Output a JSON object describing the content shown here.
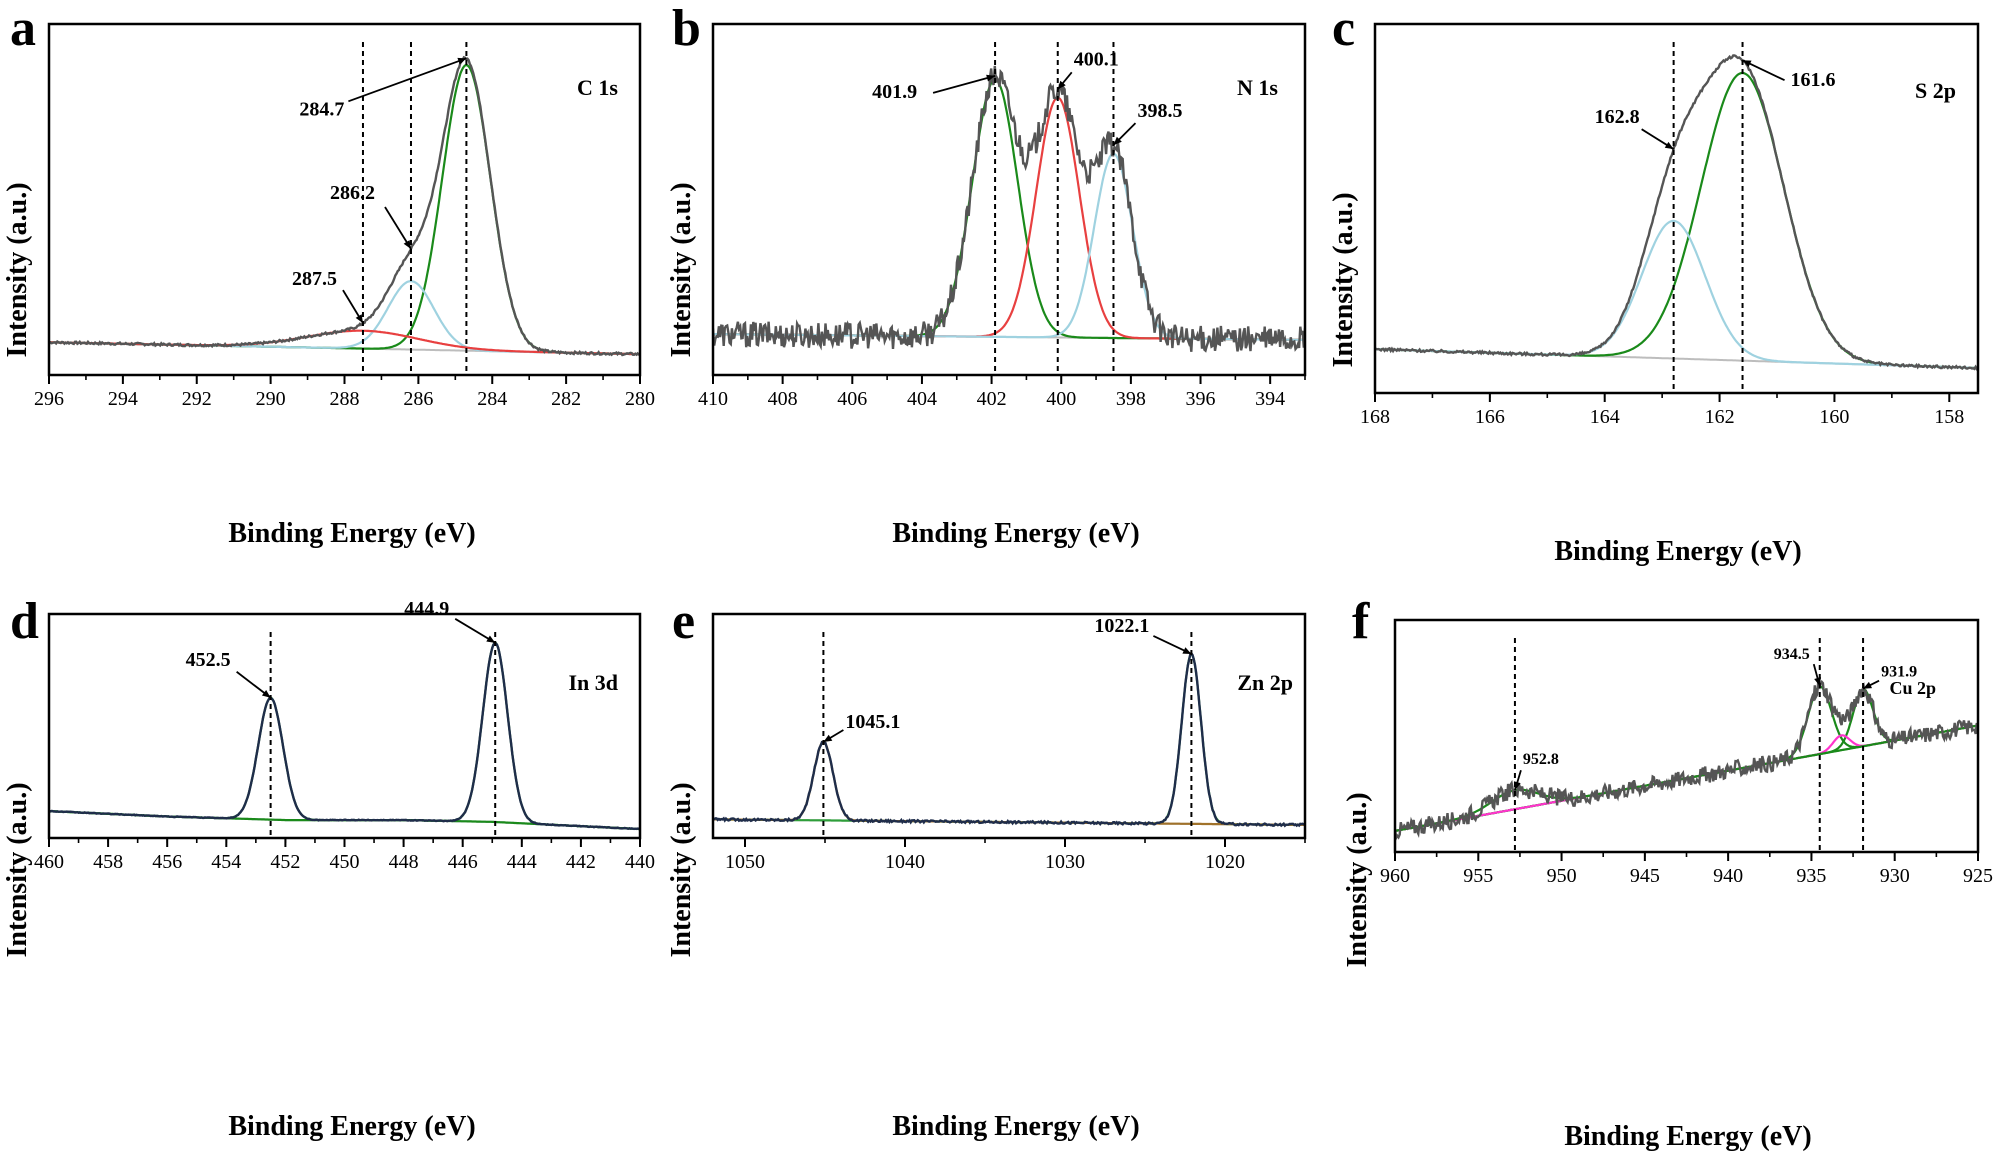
{
  "figure": {
    "panels": [
      {
        "letter": "a",
        "element": "C 1s",
        "xlabel": "Binding Energy (eV)",
        "ylabel": "Intensity (a.u.)"
      },
      {
        "letter": "b",
        "element": "N 1s",
        "xlabel": "Binding Energy (eV)",
        "ylabel": "Intensity (a.u.)"
      },
      {
        "letter": "c",
        "element": "S 2p",
        "xlabel": "Binding Energy (eV)",
        "ylabel": "Intensity (a.u.)"
      },
      {
        "letter": "d",
        "element": "In 3d",
        "xlabel": "Binding Energy (eV)",
        "ylabel": "Intensity (a.u.)"
      },
      {
        "letter": "e",
        "element": "Zn 2p",
        "xlabel": "Binding Energy (eV)",
        "ylabel": "Intensity (a.u.)"
      },
      {
        "letter": "f",
        "element": "Cu 2p",
        "xlabel": "Binding Energy (eV)",
        "ylabel": "Intensity (a.u.)"
      }
    ]
  },
  "chart_data": [
    {
      "panel": "a",
      "type": "line",
      "title": "C 1s",
      "xlabel": "Binding Energy (eV)",
      "ylabel": "Intensity (a.u.)",
      "xlim": [
        296,
        280
      ],
      "xticks": [
        296,
        294,
        292,
        290,
        288,
        286,
        284,
        282,
        280
      ],
      "ylim": [
        -0.1,
        1.08
      ],
      "y_ticks_shown": false,
      "background": {
        "type": "linear",
        "y_start": 0.01,
        "y_end": -0.03,
        "color": "#bdbdbd"
      },
      "components": [
        {
          "center": 284.7,
          "height": 0.96,
          "sigma": 0.65,
          "color": "#1a8a1a"
        },
        {
          "center": 286.2,
          "height": 0.23,
          "sigma": 0.62,
          "color": "#9fd2e0"
        },
        {
          "center": 287.5,
          "height": 0.06,
          "sigma": 1.5,
          "color": "#e84040"
        }
      ],
      "envelope_color": "#555555",
      "noise": 0.004,
      "peaks": [
        {
          "label": "284.7",
          "x": 284.7
        },
        {
          "label": "286.2",
          "x": 286.2
        },
        {
          "label": "287.5",
          "x": 287.5
        }
      ]
    },
    {
      "panel": "b",
      "type": "line",
      "title": "N 1s",
      "xlabel": "Binding Energy (eV)",
      "ylabel": "Intensity (a.u.)",
      "xlim": [
        410,
        393
      ],
      "xticks": [
        410,
        408,
        406,
        404,
        402,
        400,
        398,
        396,
        394
      ],
      "ylim": [
        -0.12,
        1.08
      ],
      "y_ticks_shown": false,
      "background": {
        "type": "linear",
        "y_start": 0.02,
        "y_end": 0.0,
        "color": "#bdbdbd"
      },
      "components": [
        {
          "center": 401.9,
          "height": 0.88,
          "sigma": 0.65,
          "color": "#1a8a1a"
        },
        {
          "center": 400.1,
          "height": 0.82,
          "sigma": 0.62,
          "color": "#e84040"
        },
        {
          "center": 398.5,
          "height": 0.63,
          "sigma": 0.55,
          "color": "#9fd2e0"
        }
      ],
      "envelope_color": "#555555",
      "noise": 0.045,
      "peaks": [
        {
          "label": "401.9",
          "x": 401.9
        },
        {
          "label": "400.1",
          "x": 400.1
        },
        {
          "label": "398.5",
          "x": 398.5
        }
      ]
    },
    {
      "panel": "c",
      "type": "line",
      "title": "S 2p",
      "xlabel": "Binding Energy (eV)",
      "ylabel": "Intensity (a.u.)",
      "xlim": [
        168,
        157.5
      ],
      "xticks": [
        168,
        166,
        164,
        162,
        160,
        158
      ],
      "ylim": [
        -0.1,
        1.08
      ],
      "y_ticks_shown": false,
      "background": {
        "type": "linear",
        "y_start": 0.04,
        "y_end": -0.02,
        "color": "#bdbdbd"
      },
      "components": [
        {
          "center": 161.6,
          "height": 0.92,
          "sigma": 0.72,
          "color": "#1a8a1a"
        },
        {
          "center": 162.8,
          "height": 0.44,
          "sigma": 0.55,
          "color": "#9fd2e0"
        }
      ],
      "envelope_color": "#555555",
      "noise": 0.004,
      "peaks": [
        {
          "label": "161.6",
          "x": 161.6
        },
        {
          "label": "162.8",
          "x": 162.8
        }
      ]
    },
    {
      "panel": "d",
      "type": "line",
      "title": "In 3d",
      "xlabel": "Binding Energy (eV)",
      "ylabel": "Intensity (a.u.)",
      "xlim": [
        460,
        440
      ],
      "xticks": [
        460,
        458,
        456,
        454,
        452,
        450,
        448,
        446,
        444,
        442,
        440
      ],
      "ylim": [
        -0.15,
        1.1
      ],
      "y_ticks_shown": false,
      "background": {
        "type": "polyline",
        "x": [
          460,
          456,
          452,
          448,
          445,
          440
        ],
        "y": [
          0.0,
          -0.03,
          -0.05,
          -0.05,
          -0.06,
          -0.1
        ],
        "color": "#8aa0b4"
      },
      "components": [
        {
          "center": 444.9,
          "height": 1.0,
          "sigma": 0.42,
          "color": "#1a8a1a"
        },
        {
          "center": 452.5,
          "height": 0.68,
          "sigma": 0.42,
          "color": "#1a8a1a"
        }
      ],
      "envelope_color": "#1f2d4a",
      "noise": 0.002,
      "peaks": [
        {
          "label": "444.9",
          "x": 444.9
        },
        {
          "label": "452.5",
          "x": 452.5
        }
      ]
    },
    {
      "panel": "e",
      "type": "line",
      "title": "Zn 2p",
      "xlabel": "Binding Energy (eV)",
      "ylabel": "Intensity (a.u.)",
      "xlim": [
        1052,
        1015
      ],
      "xticks": [
        1050,
        1040,
        1030,
        1020
      ],
      "ylim": [
        -0.1,
        1.1
      ],
      "y_ticks_shown": false,
      "background": {
        "type": "linear",
        "y_start": 0.0,
        "y_end": -0.03,
        "color": "#bdbdbd"
      },
      "components": [
        {
          "center": 1022.1,
          "height": 0.91,
          "sigma": 0.6,
          "color": "#2e9e3a"
        },
        {
          "center": 1045.1,
          "height": 0.42,
          "sigma": 0.6,
          "color": "#a0722a"
        }
      ],
      "envelope_color": "#1f2d4a",
      "noise": 0.006,
      "peaks": [
        {
          "label": "1022.1",
          "x": 1022.1
        },
        {
          "label": "1045.1",
          "x": 1045.1
        }
      ]
    },
    {
      "panel": "f",
      "type": "line",
      "title": "Cu 2p",
      "xlabel": "Binding Energy (eV)",
      "ylabel": "Intensity (a.u.)",
      "xlim": [
        960,
        925
      ],
      "xticks": [
        960,
        955,
        950,
        945,
        940,
        935,
        930,
        925
      ],
      "ylim": [
        -0.1,
        1.0
      ],
      "y_ticks_shown": false,
      "background": {
        "type": "linear",
        "y_start": 0.0,
        "y_end": 0.5,
        "color": "#1a8a1a"
      },
      "components": [
        {
          "center": 934.5,
          "height": 0.32,
          "sigma": 0.7,
          "color": "#1a8a1a"
        },
        {
          "center": 931.9,
          "height": 0.27,
          "sigma": 0.6,
          "color": "#1a8a1a"
        },
        {
          "center": 933.2,
          "height": 0.07,
          "sigma": 0.5,
          "color": "#ff33cc"
        },
        {
          "center": 952.8,
          "height": 0.09,
          "sigma": 1.4,
          "color": "#1a8a1a"
        }
      ],
      "envelope_color": "#555555",
      "noise": 0.04,
      "peaks": [
        {
          "label": "934.5",
          "x": 934.5
        },
        {
          "label": "931.9",
          "x": 931.9
        },
        {
          "label": "952.8",
          "x": 952.8
        }
      ]
    }
  ]
}
